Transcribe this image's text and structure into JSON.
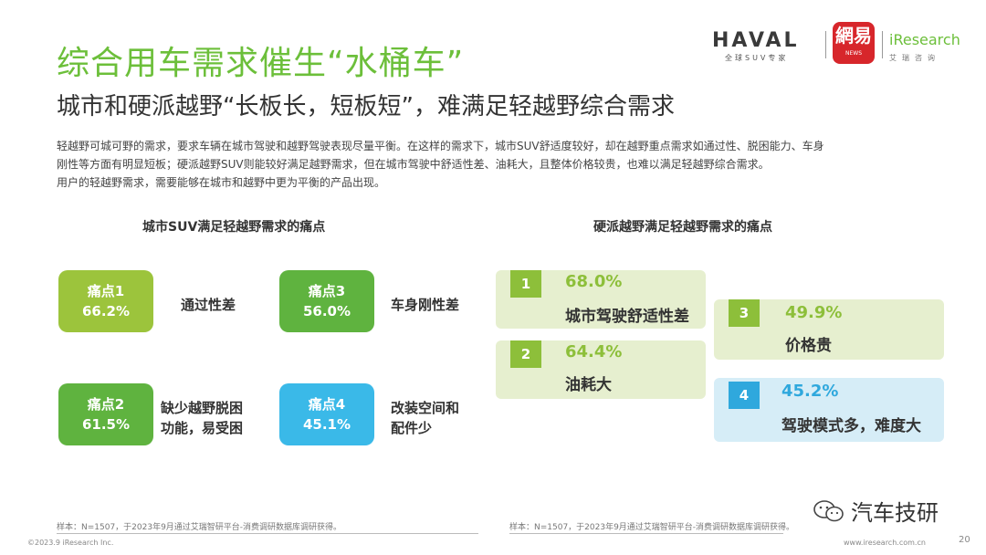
{
  "header": {
    "title": "综合用车需求催生“水桶车”",
    "subtitle": "城市和硬派越野“长板长，短板短”，难满足轻越野综合需求"
  },
  "logos": {
    "haval": "HAVAL",
    "haval_sub": "全球SUV专家",
    "netease_main": "網易",
    "netease_sub": "NEWS",
    "iresearch": "iResearch",
    "iresearch_sub": "艾瑞咨询"
  },
  "body": {
    "lines": [
      "轻越野可城可野的需求，要求车辆在城市驾驶和越野驾驶表现尽量平衡。在这样的需求下，城市SUV舒适度较好，却在越野重点需求如通过性、脱困能力、车身",
      "刚性等方面有明显短板；硬派越野SUV则能较好满足越野需求，但在城市驾驶中舒适性差、油耗大，且整体价格较贵，也难以满足轻越野综合需求。",
      "用户的轻越野需求，需要能够在城市和越野中更为平衡的产品出现。"
    ]
  },
  "left_section": {
    "title": "城市SUV满足轻越野需求的痛点",
    "items": [
      {
        "name": "痛点1",
        "value": "66.2%",
        "label": "通过性差",
        "color": "#9cc43c"
      },
      {
        "name": "痛点3",
        "value": "56.0%",
        "label": "车身刚性差",
        "color": "#5fb33f"
      },
      {
        "name": "痛点2",
        "value": "61.5%",
        "label_line1": "缺少越野脱困",
        "label_line2": "功能，易受困",
        "color": "#5fb33f"
      },
      {
        "name": "痛点4",
        "value": "45.1%",
        "label_line1": "改装空间和",
        "label_line2": "配件少",
        "color": "#3ab9e8"
      }
    ]
  },
  "right_section": {
    "title": "硬派越野满足轻越野需求的痛点",
    "items": [
      {
        "rank": "1",
        "value": "68.0%",
        "label": "城市驾驶舒适性差"
      },
      {
        "rank": "2",
        "value": "64.4%",
        "label": "油耗大"
      },
      {
        "rank": "3",
        "value": "49.9%",
        "label": "价格贵"
      },
      {
        "rank": "4",
        "value": "45.2%",
        "label": "驾驶模式多，难度大"
      }
    ]
  },
  "footer": {
    "sample_left": "样本：N=1507，于2023年9月通过艾瑞智研平台-消费调研数据库调研获得。",
    "sample_right": "样本：N=1507，于2023年9月通过艾瑞智研平台-消费调研数据库调研获得。",
    "copyright": "©2023.9 iResearch Inc.",
    "site": "www.iresearch.com.cn",
    "page": "20",
    "wechat": "汽车技研"
  },
  "colors": {
    "accent": "#6cbf3a",
    "light_green": "#9cc43c",
    "dark_green": "#5fb33f",
    "blue": "#3ab9e8"
  }
}
